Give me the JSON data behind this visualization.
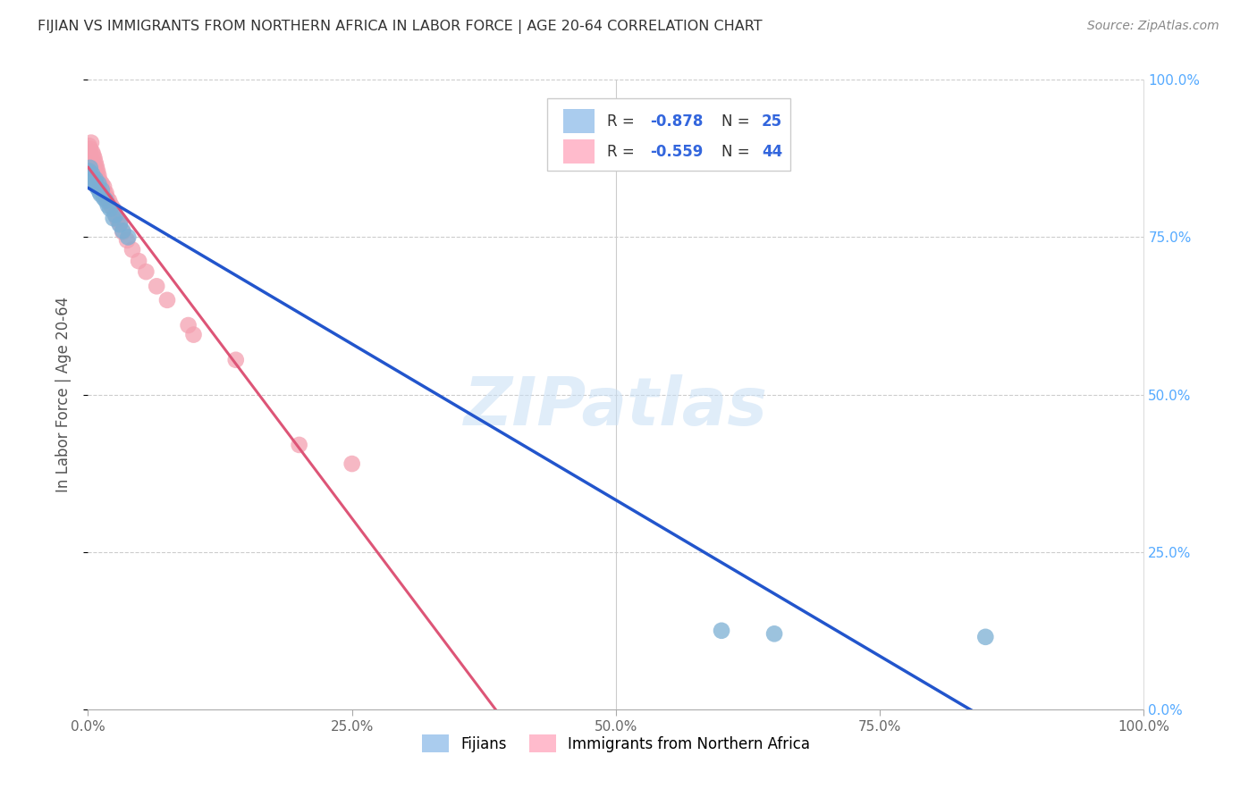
{
  "title": "FIJIAN VS IMMIGRANTS FROM NORTHERN AFRICA IN LABOR FORCE | AGE 20-64 CORRELATION CHART",
  "source": "Source: ZipAtlas.com",
  "ylabel": "In Labor Force | Age 20-64",
  "xlim": [
    0,
    1
  ],
  "ylim": [
    0,
    1
  ],
  "xticks": [
    0,
    0.25,
    0.5,
    0.75,
    1.0
  ],
  "yticks": [
    0,
    0.25,
    0.5,
    0.75,
    1.0
  ],
  "xtick_labels": [
    "0.0%",
    "25.0%",
    "50.0%",
    "75.0%",
    "100.0%"
  ],
  "ytick_labels": [
    "0.0%",
    "25.0%",
    "50.0%",
    "75.0%",
    "100.0%"
  ],
  "fijian_color": "#7bafd4",
  "africa_color": "#f4a0b0",
  "fijian_line_color": "#2255cc",
  "africa_line_color": "#dd5577",
  "fijian_R": -0.878,
  "fijian_N": 25,
  "africa_R": -0.559,
  "africa_N": 44,
  "watermark": "ZIPatlas",
  "legend_label_fijian": "Fijians",
  "legend_label_africa": "Immigrants from Northern Africa",
  "fijian_x": [
    0.001,
    0.002,
    0.003,
    0.004,
    0.005,
    0.006,
    0.007,
    0.008,
    0.009,
    0.01,
    0.011,
    0.012,
    0.013,
    0.015,
    0.017,
    0.019,
    0.021,
    0.024,
    0.026,
    0.03,
    0.033,
    0.038,
    0.6,
    0.65,
    0.85
  ],
  "fijian_y": [
    0.855,
    0.86,
    0.845,
    0.85,
    0.84,
    0.838,
    0.842,
    0.832,
    0.828,
    0.835,
    0.822,
    0.818,
    0.825,
    0.812,
    0.808,
    0.8,
    0.795,
    0.78,
    0.785,
    0.77,
    0.76,
    0.75,
    0.125,
    0.12,
    0.115
  ],
  "africa_x": [
    0.001,
    0.002,
    0.002,
    0.003,
    0.003,
    0.004,
    0.004,
    0.005,
    0.005,
    0.006,
    0.006,
    0.007,
    0.007,
    0.008,
    0.008,
    0.009,
    0.009,
    0.01,
    0.011,
    0.012,
    0.013,
    0.014,
    0.015,
    0.016,
    0.017,
    0.018,
    0.02,
    0.022,
    0.024,
    0.026,
    0.028,
    0.03,
    0.033,
    0.037,
    0.042,
    0.048,
    0.055,
    0.065,
    0.075,
    0.095,
    0.1,
    0.14,
    0.2,
    0.25
  ],
  "africa_y": [
    0.895,
    0.89,
    0.88,
    0.9,
    0.875,
    0.885,
    0.87,
    0.88,
    0.865,
    0.875,
    0.862,
    0.868,
    0.855,
    0.862,
    0.848,
    0.855,
    0.84,
    0.848,
    0.84,
    0.832,
    0.835,
    0.825,
    0.83,
    0.818,
    0.82,
    0.812,
    0.808,
    0.8,
    0.795,
    0.785,
    0.778,
    0.772,
    0.758,
    0.745,
    0.73,
    0.712,
    0.695,
    0.672,
    0.65,
    0.61,
    0.595,
    0.555,
    0.42,
    0.39
  ],
  "background_color": "#ffffff",
  "grid_color": "#cccccc"
}
